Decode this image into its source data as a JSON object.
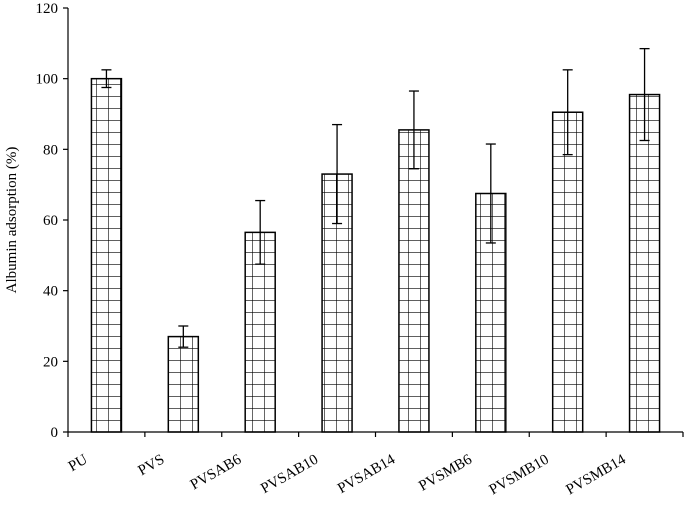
{
  "chart_data": {
    "type": "bar",
    "title": "",
    "xlabel": "",
    "ylabel": "Albumin adsorption (%)",
    "ylim": [
      0,
      120
    ],
    "yticks": [
      0,
      20,
      40,
      60,
      80,
      100,
      120
    ],
    "grid": false,
    "legend": "none",
    "bar_pattern": "grid-hatch",
    "categories": [
      "PU",
      "PVS",
      "PVSAB6",
      "PVSAB10",
      "PVSAB14",
      "PVSMB6",
      "PVSMB10",
      "PVSMB14"
    ],
    "series": [
      {
        "values": [
          100,
          27,
          56.5,
          73,
          85.5,
          67.5,
          90.5,
          95.5
        ],
        "errors": [
          2.5,
          3,
          9,
          14,
          11,
          14,
          12,
          13
        ]
      }
    ],
    "colors": {
      "bar_fill": "#ffffff",
      "bar_stroke": "#000000",
      "axis": "#000000"
    }
  }
}
